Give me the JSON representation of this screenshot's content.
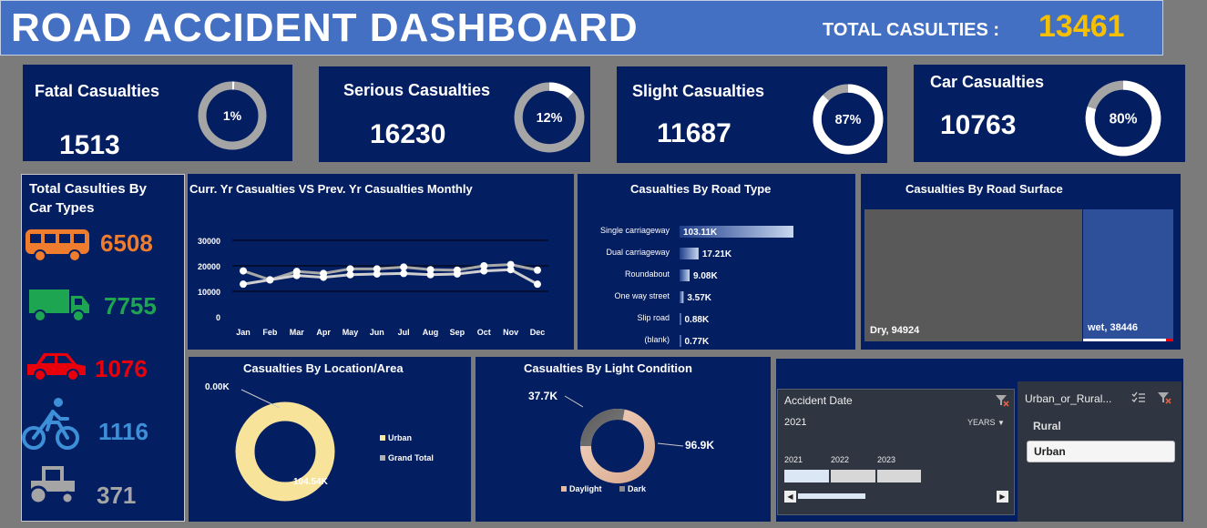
{
  "header": {
    "title": "ROAD ACCIDENT DASHBOARD",
    "total_label": "TOTAL CASULTIES :",
    "total_value": "13461"
  },
  "kpis": [
    {
      "title": "Fatal Casualties",
      "value": "1513",
      "pct_label": "1%",
      "pct": 1
    },
    {
      "title": "Serious Casualties",
      "value": "16230",
      "pct_label": "12%",
      "pct": 12
    },
    {
      "title": "Slight Casualties",
      "value": "11687",
      "pct_label": "87%",
      "pct": 87
    },
    {
      "title": "Car Casualties",
      "value": "10763",
      "pct_label": "80%",
      "pct": 80
    }
  ],
  "car_types": {
    "title_line1": "Total Casulties By",
    "title_line2": "Car Types",
    "items": [
      {
        "icon": "bus-icon",
        "value": "6508",
        "color": "#ef7d2d"
      },
      {
        "icon": "truck-icon",
        "value": "7755",
        "color": "#1da552"
      },
      {
        "icon": "car-icon",
        "value": "1076",
        "color": "#e8000b"
      },
      {
        "icon": "bicycle-icon",
        "value": "1116",
        "color": "#3d8fd8"
      },
      {
        "icon": "tractor-icon",
        "value": "371",
        "color": "#a5a5a5"
      }
    ]
  },
  "monthly": {
    "title": "Curr. Yr Casualties VS Prev. Yr Casualties Monthly",
    "chart_data": {
      "type": "line",
      "categories": [
        "Jan",
        "Feb",
        "Mar",
        "Apr",
        "May",
        "Jun",
        "Jul",
        "Aug",
        "Sep",
        "Oct",
        "Nov",
        "Dec"
      ],
      "ylim": [
        0,
        30000
      ],
      "yticks": [
        "30000",
        "20000",
        "10000",
        "0"
      ],
      "series": [
        {
          "values": [
            18000,
            14500,
            17800,
            17000,
            18800,
            18800,
            19500,
            18500,
            18300,
            20000,
            20500,
            18300
          ]
        },
        {
          "values": [
            12800,
            14500,
            16200,
            15500,
            16500,
            16800,
            17000,
            16500,
            16800,
            18000,
            18500,
            12800
          ]
        }
      ]
    }
  },
  "road_type": {
    "title": "Casualties By Road Type",
    "chart_data": {
      "type": "bar",
      "categories": [
        "Single carriageway",
        "Dual carriageway",
        "Roundabout",
        "One way street",
        "Slip road",
        "(blank)"
      ],
      "values": [
        103.11,
        17.21,
        9.08,
        3.57,
        0.88,
        0.77
      ],
      "labels": [
        "103.11K",
        "17.21K",
        "9.08K",
        "3.57K",
        "0.88K",
        "0.77K"
      ]
    }
  },
  "road_surface": {
    "title": "Casualties By Road Surface",
    "chart_data": {
      "type": "treemap",
      "items": [
        {
          "label": "Dry, 94924",
          "value": 94924,
          "color": "#595959"
        },
        {
          "label": "wet, 38446",
          "value": 38446,
          "color": "#2e4f99"
        }
      ]
    }
  },
  "location": {
    "title": "Casualties By Location/Area",
    "chart_data": {
      "type": "pie",
      "labels": [
        "0.00K",
        "104.54K"
      ],
      "legend": [
        "Urban",
        "Grand Total"
      ],
      "values": [
        0,
        104.54
      ]
    }
  },
  "light": {
    "title": "Casualties By Light Condition",
    "chart_data": {
      "type": "pie",
      "labels": [
        "37.7K",
        "96.9K"
      ],
      "legend": [
        "Daylight",
        "Dark"
      ],
      "values": [
        37.7,
        96.9
      ]
    }
  },
  "slicer_date": {
    "title": "Accident Date",
    "selected_year": "2021",
    "unit": "YEARS",
    "years": [
      "2021",
      "2022",
      "2023"
    ]
  },
  "slicer_area": {
    "title": "Urban_or_Rural...",
    "options": [
      "Rural",
      "Urban"
    ],
    "selected": "Urban"
  }
}
